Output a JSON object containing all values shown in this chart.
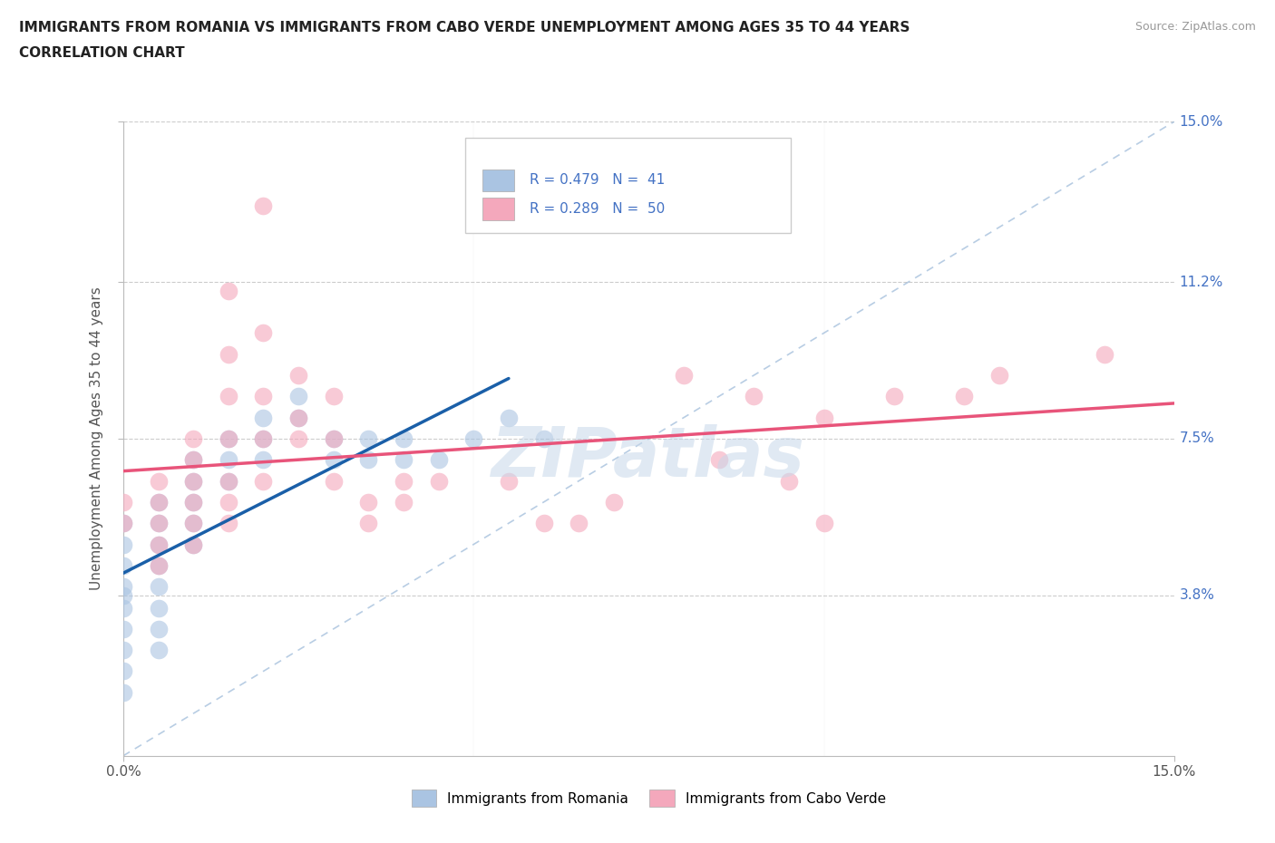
{
  "title_line1": "IMMIGRANTS FROM ROMANIA VS IMMIGRANTS FROM CABO VERDE UNEMPLOYMENT AMONG AGES 35 TO 44 YEARS",
  "title_line2": "CORRELATION CHART",
  "source_text": "Source: ZipAtlas.com",
  "ylabel": "Unemployment Among Ages 35 to 44 years",
  "xlim": [
    0.0,
    0.15
  ],
  "ylim": [
    0.0,
    0.15
  ],
  "ytick_values": [
    0.038,
    0.075,
    0.112,
    0.15
  ],
  "ytick_labels": [
    "3.8%",
    "7.5%",
    "11.2%",
    "15.0%"
  ],
  "romania_color": "#aac4e2",
  "cabo_verde_color": "#f4a8bc",
  "romania_trend_color": "#1a5fa8",
  "cabo_verde_trend_color": "#e8547a",
  "diagonal_color": "#9ab8d8",
  "watermark": "ZIPatlas",
  "legend_label_romania": "Immigrants from Romania",
  "legend_label_cabo_verde": "Immigrants from Cabo Verde",
  "romania_points": [
    [
      0.0,
      0.055
    ],
    [
      0.0,
      0.05
    ],
    [
      0.0,
      0.045
    ],
    [
      0.0,
      0.04
    ],
    [
      0.0,
      0.038
    ],
    [
      0.0,
      0.035
    ],
    [
      0.0,
      0.03
    ],
    [
      0.0,
      0.025
    ],
    [
      0.0,
      0.02
    ],
    [
      0.0,
      0.015
    ],
    [
      0.005,
      0.06
    ],
    [
      0.005,
      0.055
    ],
    [
      0.005,
      0.05
    ],
    [
      0.005,
      0.045
    ],
    [
      0.005,
      0.04
    ],
    [
      0.005,
      0.035
    ],
    [
      0.005,
      0.03
    ],
    [
      0.005,
      0.025
    ],
    [
      0.01,
      0.07
    ],
    [
      0.01,
      0.065
    ],
    [
      0.01,
      0.06
    ],
    [
      0.01,
      0.055
    ],
    [
      0.01,
      0.05
    ],
    [
      0.015,
      0.075
    ],
    [
      0.015,
      0.07
    ],
    [
      0.015,
      0.065
    ],
    [
      0.02,
      0.08
    ],
    [
      0.02,
      0.075
    ],
    [
      0.02,
      0.07
    ],
    [
      0.025,
      0.085
    ],
    [
      0.025,
      0.08
    ],
    [
      0.03,
      0.075
    ],
    [
      0.03,
      0.07
    ],
    [
      0.035,
      0.075
    ],
    [
      0.035,
      0.07
    ],
    [
      0.04,
      0.075
    ],
    [
      0.04,
      0.07
    ],
    [
      0.045,
      0.07
    ],
    [
      0.05,
      0.075
    ],
    [
      0.055,
      0.08
    ],
    [
      0.06,
      0.075
    ]
  ],
  "cabo_verde_points": [
    [
      0.0,
      0.06
    ],
    [
      0.0,
      0.055
    ],
    [
      0.005,
      0.065
    ],
    [
      0.005,
      0.06
    ],
    [
      0.005,
      0.055
    ],
    [
      0.005,
      0.05
    ],
    [
      0.005,
      0.045
    ],
    [
      0.01,
      0.075
    ],
    [
      0.01,
      0.07
    ],
    [
      0.01,
      0.065
    ],
    [
      0.01,
      0.06
    ],
    [
      0.01,
      0.055
    ],
    [
      0.01,
      0.05
    ],
    [
      0.015,
      0.11
    ],
    [
      0.015,
      0.095
    ],
    [
      0.015,
      0.085
    ],
    [
      0.015,
      0.075
    ],
    [
      0.015,
      0.065
    ],
    [
      0.015,
      0.06
    ],
    [
      0.015,
      0.055
    ],
    [
      0.02,
      0.13
    ],
    [
      0.02,
      0.1
    ],
    [
      0.02,
      0.085
    ],
    [
      0.02,
      0.075
    ],
    [
      0.02,
      0.065
    ],
    [
      0.025,
      0.09
    ],
    [
      0.025,
      0.08
    ],
    [
      0.025,
      0.075
    ],
    [
      0.03,
      0.085
    ],
    [
      0.03,
      0.075
    ],
    [
      0.03,
      0.065
    ],
    [
      0.035,
      0.06
    ],
    [
      0.035,
      0.055
    ],
    [
      0.04,
      0.065
    ],
    [
      0.04,
      0.06
    ],
    [
      0.045,
      0.065
    ],
    [
      0.055,
      0.065
    ],
    [
      0.06,
      0.055
    ],
    [
      0.065,
      0.055
    ],
    [
      0.07,
      0.06
    ],
    [
      0.08,
      0.09
    ],
    [
      0.085,
      0.07
    ],
    [
      0.09,
      0.085
    ],
    [
      0.095,
      0.065
    ],
    [
      0.1,
      0.08
    ],
    [
      0.1,
      0.055
    ],
    [
      0.11,
      0.085
    ],
    [
      0.12,
      0.085
    ],
    [
      0.125,
      0.09
    ],
    [
      0.14,
      0.095
    ]
  ]
}
